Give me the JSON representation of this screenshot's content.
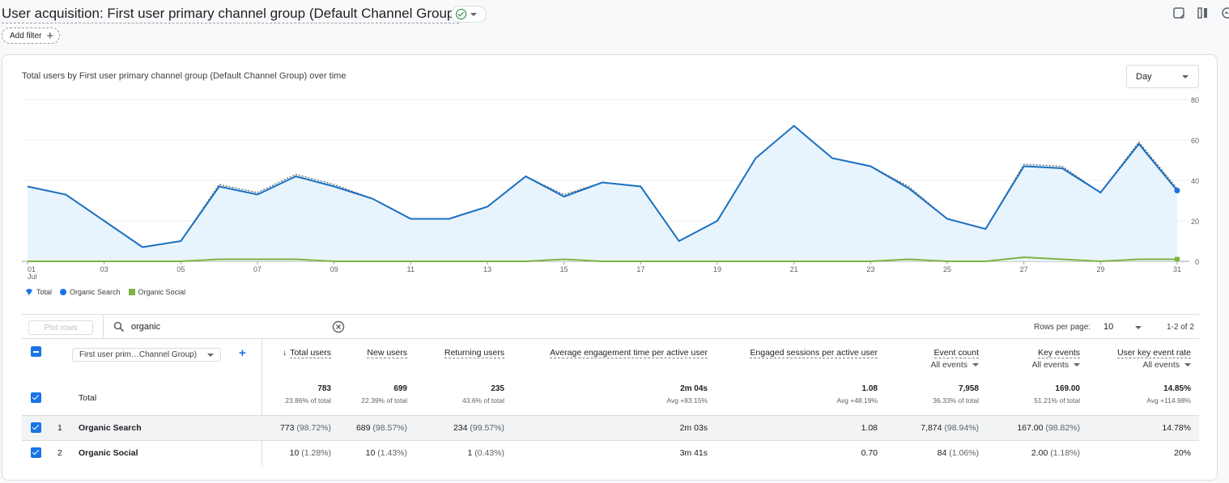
{
  "header": {
    "title": "User acquisition: First user primary channel group (Default Channel Group)",
    "add_filter": "Add filter"
  },
  "chart": {
    "title": "Total users by First user primary channel group (Default Channel Group) over time",
    "granularity": "Day"
  },
  "chart_data": {
    "type": "area",
    "x": [
      1,
      2,
      3,
      4,
      5,
      6,
      7,
      8,
      9,
      10,
      11,
      12,
      13,
      14,
      15,
      16,
      17,
      18,
      19,
      20,
      21,
      22,
      23,
      24,
      25,
      26,
      27,
      28,
      29,
      30,
      31
    ],
    "x_tick_labels": [
      "01",
      "03",
      "05",
      "07",
      "09",
      "11",
      "13",
      "15",
      "17",
      "19",
      "21",
      "23",
      "25",
      "27",
      "29",
      "31"
    ],
    "x_sub_label": "Jul",
    "y_ticks": [
      "0",
      "20",
      "40",
      "60",
      "80"
    ],
    "ylim": [
      0,
      80
    ],
    "legend_placement": "bottom-left",
    "series": [
      {
        "name": "Total",
        "values": [
          37,
          33,
          20,
          7,
          10,
          38,
          34,
          43,
          38,
          31,
          21,
          21,
          27,
          42,
          33,
          39,
          37,
          10,
          20,
          51,
          67,
          51,
          47,
          37,
          21,
          16,
          48,
          47,
          34,
          59,
          36
        ]
      },
      {
        "name": "Organic Search",
        "values": [
          37,
          33,
          20,
          7,
          10,
          37,
          33,
          42,
          37,
          31,
          21,
          21,
          27,
          42,
          32,
          39,
          37,
          10,
          20,
          51,
          67,
          51,
          47,
          36,
          21,
          16,
          47,
          46,
          34,
          58,
          35
        ]
      },
      {
        "name": "Organic Social",
        "values": [
          0,
          0,
          0,
          0,
          0,
          1,
          1,
          1,
          0,
          0,
          0,
          0,
          0,
          0,
          1,
          0,
          0,
          0,
          0,
          0,
          0,
          0,
          0,
          1,
          0,
          0,
          2,
          1,
          0,
          1,
          1
        ]
      }
    ],
    "colors": {
      "total": "#1a73e8",
      "organic_search": "#1a6fc0",
      "organic_social": "#7cb342",
      "area_fill": "#e8f4fd"
    }
  },
  "legend": {
    "total": "Total",
    "organic_search": "Organic Search",
    "organic_social": "Organic Social"
  },
  "table": {
    "plot_rows": "Plot rows",
    "search_value": "organic",
    "rows_per_page_label": "Rows per page:",
    "rows_per_page": "10",
    "page_range": "1-2 of 2",
    "dimension": "First user prim…Channel Group)",
    "columns": [
      {
        "label": "Total users",
        "sub": ""
      },
      {
        "label": "New users",
        "sub": ""
      },
      {
        "label": "Returning users",
        "sub": ""
      },
      {
        "label": "Average engagement time per active user",
        "sub": ""
      },
      {
        "label": "Engaged sessions per active user",
        "sub": ""
      },
      {
        "label": "Event count",
        "sub": "All events"
      },
      {
        "label": "Key events",
        "sub": "All events"
      },
      {
        "label": "User key event rate",
        "sub": "All events"
      }
    ],
    "totals": {
      "label": "Total",
      "cells": [
        {
          "v": "783",
          "s": "23.86% of total"
        },
        {
          "v": "699",
          "s": "22.39% of total"
        },
        {
          "v": "235",
          "s": "43.6% of total"
        },
        {
          "v": "2m 04s",
          "s": "Avg +83.15%"
        },
        {
          "v": "1.08",
          "s": "Avg +48.19%"
        },
        {
          "v": "7,958",
          "s": "36.33% of total"
        },
        {
          "v": "169.00",
          "s": "51.21% of total"
        },
        {
          "v": "14.85%",
          "s": "Avg +114.98%"
        }
      ]
    },
    "rows": [
      {
        "idx": "1",
        "name": "Organic Search",
        "cells": [
          [
            "773",
            "(98.72%)"
          ],
          [
            "689",
            "(98.57%)"
          ],
          [
            "234",
            "(99.57%)"
          ],
          [
            "2m 03s",
            ""
          ],
          [
            "1.08",
            ""
          ],
          [
            "7,874",
            "(98.94%)"
          ],
          [
            "167.00",
            "(98.82%)"
          ],
          [
            "14.78%",
            ""
          ]
        ]
      },
      {
        "idx": "2",
        "name": "Organic Social",
        "cells": [
          [
            "10",
            "(1.28%)"
          ],
          [
            "10",
            "(1.43%)"
          ],
          [
            "1",
            "(0.43%)"
          ],
          [
            "3m 41s",
            ""
          ],
          [
            "0.70",
            ""
          ],
          [
            "84",
            "(1.06%)"
          ],
          [
            "2.00",
            "(1.18%)"
          ],
          [
            "20%",
            ""
          ]
        ]
      }
    ]
  }
}
